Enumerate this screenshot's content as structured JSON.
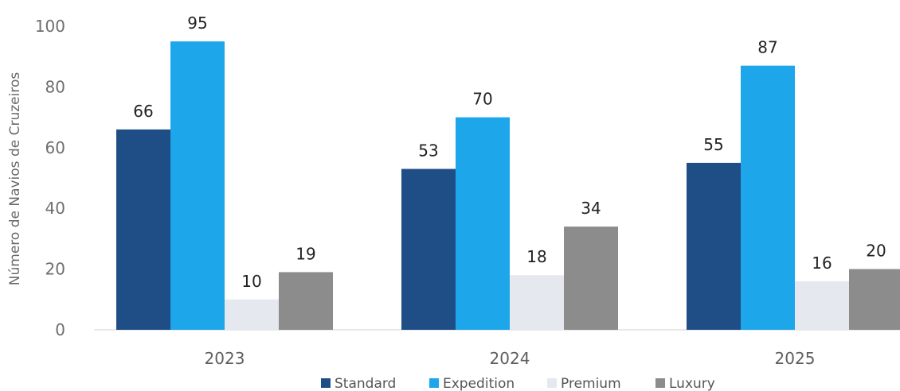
{
  "chart_data": {
    "type": "bar",
    "title": "",
    "xlabel": "",
    "ylabel": "Número de Navios de Cruzeiros",
    "ylim": [
      0,
      100
    ],
    "yticks": [
      0,
      20,
      40,
      60,
      80,
      100
    ],
    "grid": false,
    "legend_position": "bottom",
    "categories": [
      "2023",
      "2024",
      "2025"
    ],
    "series": [
      {
        "name": "Standard",
        "color": "#1f4e86",
        "values": [
          66,
          53,
          55
        ]
      },
      {
        "name": "Expedition",
        "color": "#1ea6ea",
        "values": [
          95,
          70,
          87
        ]
      },
      {
        "name": "Premium",
        "color": "#e6e8ef",
        "values": [
          10,
          18,
          16
        ]
      },
      {
        "name": "Luxury",
        "color": "#8c8c8c",
        "values": [
          19,
          34,
          20
        ]
      }
    ]
  }
}
